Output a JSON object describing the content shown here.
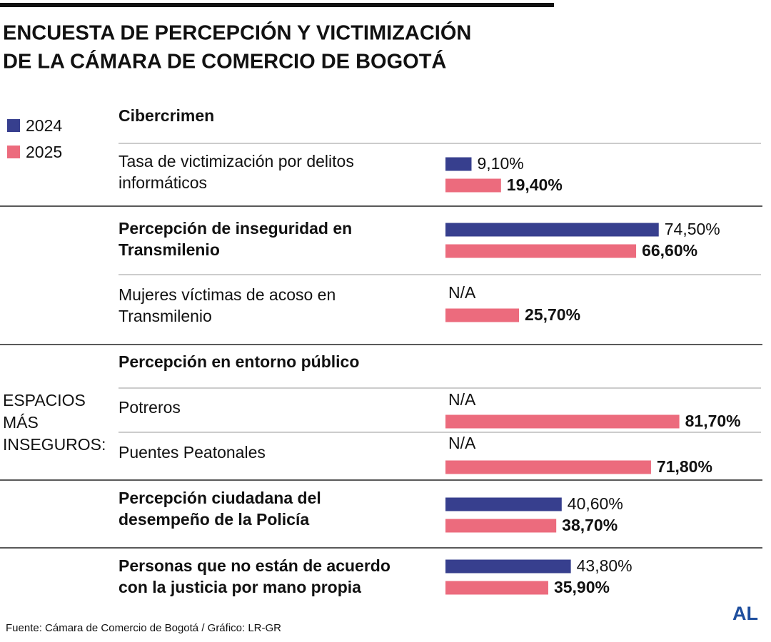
{
  "chart_data": {
    "type": "bar",
    "title": [
      "ENCUESTA DE PERCEPCIÓN Y VICTIMIZACIÓN",
      "DE LA  CÁMARA DE COMERCIO DE BOGOTÁ"
    ],
    "section_titles": [
      "Cibercrimen",
      "Percepción en entorno público"
    ],
    "side_label": [
      "ESPACIOS",
      "MÁS",
      "INSEGUROS:"
    ],
    "categories": [
      [
        "Tasa de victimización por delitos",
        "informáticos"
      ],
      [
        "Percepción de inseguridad en",
        "Transmilenio"
      ],
      [
        "Mujeres víctimas de acoso en",
        "Transmilenio"
      ],
      [
        "Potreros"
      ],
      [
        "Puentes Peatonales"
      ],
      [
        "Percepción ciudadana del",
        "desempeño de la Policía"
      ],
      [
        "Personas que no están de acuerdo",
        "con la justicia por mano propia"
      ]
    ],
    "bold_categories": [
      false,
      true,
      false,
      false,
      false,
      true,
      true
    ],
    "series": [
      {
        "name": "2024",
        "color": "#373f8e",
        "values": [
          9.1,
          74.5,
          null,
          null,
          null,
          40.6,
          43.8
        ],
        "value_labels": [
          "9,10%",
          "74,50%",
          "N/A",
          "N/A",
          "N/A",
          "40,60%",
          "43,80%"
        ]
      },
      {
        "name": "2025",
        "color": "#ec6b7d",
        "values": [
          19.4,
          66.6,
          25.7,
          81.7,
          71.8,
          38.7,
          35.9
        ],
        "value_labels": [
          "19,40%",
          "66,60%",
          "25,70%",
          "81,70%",
          "71,80%",
          "38,70%",
          "35,90%"
        ]
      }
    ],
    "source": "Fuente: Cámara de Comercio de Bogotá / Gráfico: LR-GR",
    "logo": "AL"
  }
}
